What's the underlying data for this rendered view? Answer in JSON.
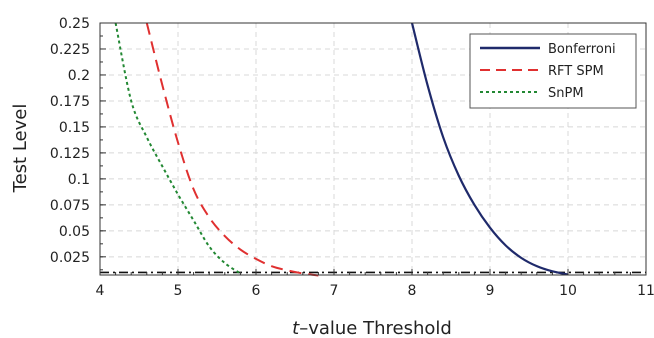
{
  "chart_data": {
    "type": "line",
    "xlabel_italic": "t",
    "xlabel_rest": "–value Threshold",
    "ylabel": "Test Level",
    "xlim": [
      4,
      11
    ],
    "ylim": [
      0.0075,
      0.25
    ],
    "x_ticks": [
      "4",
      "5",
      "6",
      "7",
      "8",
      "9",
      "10",
      "11"
    ],
    "y_ticks": [
      "0.025",
      "0.05",
      "0.075",
      "0.1",
      "0.125",
      "0.15",
      "0.175",
      "0.2",
      "0.225",
      "0.25"
    ],
    "grid": true,
    "legend_position": "top-right",
    "reference_line": {
      "y": 0.01,
      "style": "dash-dot",
      "color": "#111111"
    },
    "series": [
      {
        "name": "Bonferroni",
        "color": "#1f2a6b",
        "style": "solid",
        "x": [
          8.0,
          8.2,
          8.4,
          8.6,
          8.8,
          9.0,
          9.2,
          9.4,
          9.6,
          9.8,
          10.0
        ],
        "y": [
          0.25,
          0.19,
          0.14,
          0.103,
          0.075,
          0.053,
          0.036,
          0.024,
          0.016,
          0.011,
          0.008
        ]
      },
      {
        "name": "RFT SPM",
        "color": "#e03030",
        "style": "dashed",
        "x": [
          4.6,
          4.8,
          5.0,
          5.2,
          5.4,
          5.6,
          5.8,
          6.0,
          6.2,
          6.4,
          6.6,
          6.8
        ],
        "y": [
          0.25,
          0.19,
          0.135,
          0.09,
          0.063,
          0.045,
          0.032,
          0.023,
          0.016,
          0.012,
          0.009,
          0.007
        ]
      },
      {
        "name": "SnPM",
        "color": "#228833",
        "style": "dotted",
        "x": [
          4.2,
          4.4,
          4.6,
          4.8,
          5.0,
          5.2,
          5.4,
          5.6,
          5.8
        ],
        "y": [
          0.25,
          0.175,
          0.14,
          0.112,
          0.085,
          0.06,
          0.035,
          0.019,
          0.009
        ]
      }
    ]
  }
}
